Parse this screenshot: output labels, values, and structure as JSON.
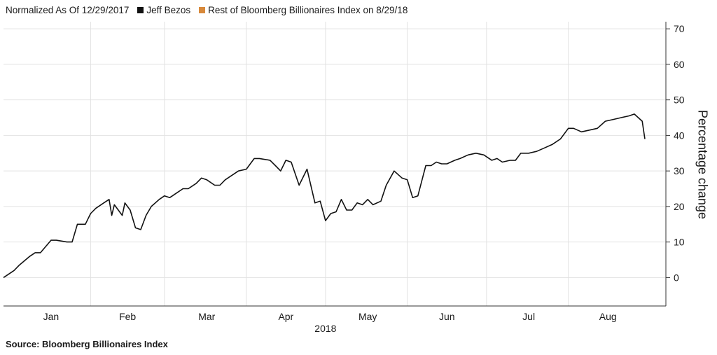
{
  "legend": {
    "note": "Normalized As Of 12/29/2017",
    "items": [
      {
        "label": "Jeff Bezos",
        "color": "#111111"
      },
      {
        "label": "Rest of Bloomberg Billionaires Index on 8/29/18",
        "color": "#d8893b"
      }
    ]
  },
  "source": "Source:  Bloomberg Billionaires Index",
  "chart_data": {
    "type": "line",
    "title": "",
    "xlabel": "2018",
    "ylabel": "Percentage change",
    "x_tick_labels": [
      "Jan",
      "Feb",
      "Mar",
      "Apr",
      "May",
      "Jun",
      "Jul",
      "Aug"
    ],
    "y_ticks": [
      0,
      10,
      20,
      30,
      40,
      50,
      60,
      70
    ],
    "ylim": [
      -8,
      72
    ],
    "x_range": [
      "2017-12-29",
      "2018-08-29"
    ],
    "grid": true,
    "series": [
      {
        "name": "Jeff Bezos",
        "color": "#111111",
        "points": [
          [
            "2017-12-29",
            0
          ],
          [
            "2018-01-02",
            2
          ],
          [
            "2018-01-04",
            3.5
          ],
          [
            "2018-01-08",
            6
          ],
          [
            "2018-01-10",
            7
          ],
          [
            "2018-01-12",
            7
          ],
          [
            "2018-01-16",
            10.5
          ],
          [
            "2018-01-18",
            10.5
          ],
          [
            "2018-01-22",
            10
          ],
          [
            "2018-01-24",
            10
          ],
          [
            "2018-01-26",
            15
          ],
          [
            "2018-01-29",
            15
          ],
          [
            "2018-01-31",
            18
          ],
          [
            "2018-02-02",
            19.5
          ],
          [
            "2018-02-05",
            21
          ],
          [
            "2018-02-07",
            22
          ],
          [
            "2018-02-08",
            17.5
          ],
          [
            "2018-02-09",
            20.5
          ],
          [
            "2018-02-12",
            17.5
          ],
          [
            "2018-02-13",
            21
          ],
          [
            "2018-02-15",
            19
          ],
          [
            "2018-02-17",
            14
          ],
          [
            "2018-02-19",
            13.5
          ],
          [
            "2018-02-21",
            17.5
          ],
          [
            "2018-02-23",
            20
          ],
          [
            "2018-02-26",
            22
          ],
          [
            "2018-02-28",
            23
          ],
          [
            "2018-03-02",
            22.5
          ],
          [
            "2018-03-05",
            24
          ],
          [
            "2018-03-07",
            25
          ],
          [
            "2018-03-09",
            25
          ],
          [
            "2018-03-12",
            26.5
          ],
          [
            "2018-03-14",
            28
          ],
          [
            "2018-03-16",
            27.5
          ],
          [
            "2018-03-19",
            26
          ],
          [
            "2018-03-21",
            26
          ],
          [
            "2018-03-23",
            27.5
          ],
          [
            "2018-03-26",
            29
          ],
          [
            "2018-03-28",
            30
          ],
          [
            "2018-03-31",
            30.5
          ],
          [
            "2018-04-03",
            33.5
          ],
          [
            "2018-04-05",
            33.5
          ],
          [
            "2018-04-09",
            33
          ],
          [
            "2018-04-11",
            31.5
          ],
          [
            "2018-04-13",
            30
          ],
          [
            "2018-04-15",
            33
          ],
          [
            "2018-04-17",
            32.5
          ],
          [
            "2018-04-20",
            26
          ],
          [
            "2018-04-23",
            30.5
          ],
          [
            "2018-04-26",
            21
          ],
          [
            "2018-04-28",
            21.5
          ],
          [
            "2018-04-30",
            16
          ],
          [
            "2018-05-02",
            18
          ],
          [
            "2018-05-04",
            18.5
          ],
          [
            "2018-05-06",
            22
          ],
          [
            "2018-05-08",
            19
          ],
          [
            "2018-05-10",
            19
          ],
          [
            "2018-05-12",
            21
          ],
          [
            "2018-05-14",
            20.5
          ],
          [
            "2018-05-16",
            22
          ],
          [
            "2018-05-18",
            20.5
          ],
          [
            "2018-05-21",
            21.5
          ],
          [
            "2018-05-23",
            26
          ],
          [
            "2018-05-26",
            30
          ],
          [
            "2018-05-29",
            28
          ],
          [
            "2018-05-31",
            27.5
          ],
          [
            "2018-06-02",
            22.5
          ],
          [
            "2018-06-04",
            23
          ],
          [
            "2018-06-07",
            31.5
          ],
          [
            "2018-06-09",
            31.5
          ],
          [
            "2018-06-11",
            32.5
          ],
          [
            "2018-06-13",
            32
          ],
          [
            "2018-06-15",
            32
          ],
          [
            "2018-06-18",
            33
          ],
          [
            "2018-06-20",
            33.5
          ],
          [
            "2018-06-23",
            34.5
          ],
          [
            "2018-06-26",
            35
          ],
          [
            "2018-06-29",
            34.5
          ],
          [
            "2018-07-02",
            33
          ],
          [
            "2018-07-04",
            33.5
          ],
          [
            "2018-07-06",
            32.5
          ],
          [
            "2018-07-09",
            33
          ],
          [
            "2018-07-11",
            33
          ],
          [
            "2018-07-13",
            35
          ],
          [
            "2018-07-16",
            35
          ],
          [
            "2018-07-19",
            35.5
          ],
          [
            "2018-07-22",
            36.5
          ],
          [
            "2018-07-25",
            37.5
          ],
          [
            "2018-07-28",
            39
          ],
          [
            "2018-07-31",
            42
          ],
          [
            "2018-08-02",
            42
          ],
          [
            "2018-08-05",
            41
          ],
          [
            "2018-08-08",
            41.5
          ],
          [
            "2018-08-11",
            42
          ],
          [
            "2018-08-14",
            44
          ],
          [
            "2018-08-17",
            44.5
          ],
          [
            "2018-08-20",
            45
          ],
          [
            "2018-08-23",
            45.5
          ],
          [
            "2018-08-25",
            46
          ],
          [
            "2018-08-28",
            44
          ],
          [
            "2018-08-29",
            39
          ]
        ]
      },
      {
        "name": "Rest of Bloomberg Billionaires Index on 8/29/18",
        "color": "#d8893b",
        "points": []
      }
    ]
  }
}
